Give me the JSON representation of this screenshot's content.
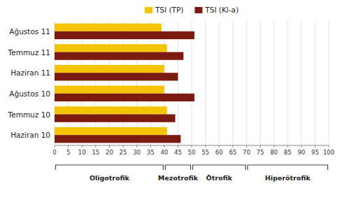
{
  "chart_data": {
    "type": "bar",
    "orientation": "horizontal",
    "categories": [
      "Haziran 10",
      "Temmuz 10",
      "Ağustos 10",
      "Haziran 11",
      "Temmuz 11",
      "Ağustos 11"
    ],
    "series": [
      {
        "name": "TSI (TP)",
        "color": "#F5C400",
        "values": [
          41,
          41,
          40,
          40,
          41,
          39
        ]
      },
      {
        "name": "TSI (Kl-a)",
        "color": "#7B1A10",
        "values": [
          46,
          44,
          51,
          45,
          47,
          51
        ]
      }
    ],
    "xlim": [
      0,
      100
    ],
    "xticks": [
      0,
      5,
      10,
      15,
      20,
      25,
      30,
      35,
      40,
      45,
      50,
      55,
      60,
      65,
      70,
      75,
      80,
      85,
      90,
      95,
      100
    ],
    "grid": true,
    "legend": "top",
    "annotations": [
      {
        "text": "Oligotrofik",
        "range": [
          0,
          40
        ],
        "x": 20
      },
      {
        "text": "Mezotrofik",
        "range": [
          40,
          50
        ],
        "x": 45
      },
      {
        "text": "Ötrofik",
        "range": [
          50,
          70
        ],
        "x": 60
      },
      {
        "text": "Hiperötrofik",
        "range": [
          70,
          100
        ],
        "x": 85
      }
    ]
  }
}
